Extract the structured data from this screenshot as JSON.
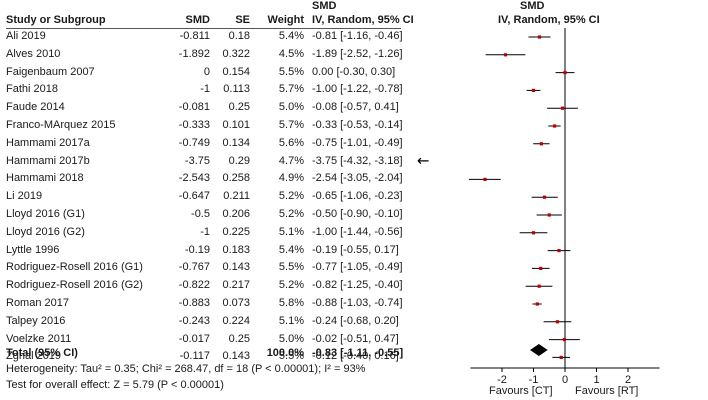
{
  "chart_data": {
    "type": "forest",
    "measure": "SMD",
    "columns": {
      "study": "Study or Subgroup",
      "smd": "SMD",
      "se": "SE",
      "weight": "Weight",
      "ci_group": "SMD",
      "ci_sub": "IV, Random, 95% CI",
      "plot_group": "SMD",
      "plot_sub": "IV, Random, 95% CI"
    },
    "studies": [
      {
        "name": "Ali 2019",
        "smd": "-0.811",
        "se": "0.18",
        "weight": "5.4%",
        "ci": "-0.81 [-1.16, -0.46]",
        "est": -0.81,
        "lo": -1.16,
        "hi": -0.46
      },
      {
        "name": "Alves 2010",
        "smd": "-1.892",
        "se": "0.322",
        "weight": "4.5%",
        "ci": "-1.89 [-2.52, -1.26]",
        "est": -1.89,
        "lo": -2.52,
        "hi": -1.26
      },
      {
        "name": "Faigenbaum 2007",
        "smd": "0",
        "se": "0.154",
        "weight": "5.5%",
        "ci": "0.00 [-0.30, 0.30]",
        "est": 0.0,
        "lo": -0.3,
        "hi": 0.3
      },
      {
        "name": "Fathi 2018",
        "smd": "-1",
        "se": "0.113",
        "weight": "5.7%",
        "ci": "-1.00 [-1.22, -0.78]",
        "est": -1.0,
        "lo": -1.22,
        "hi": -0.78
      },
      {
        "name": "Faude 2014",
        "smd": "-0.081",
        "se": "0.25",
        "weight": "5.0%",
        "ci": "-0.08 [-0.57, 0.41]",
        "est": -0.08,
        "lo": -0.57,
        "hi": 0.41
      },
      {
        "name": "Franco-MArquez 2015",
        "smd": "-0.333",
        "se": "0.101",
        "weight": "5.7%",
        "ci": "-0.33 [-0.53, -0.14]",
        "est": -0.33,
        "lo": -0.53,
        "hi": -0.14
      },
      {
        "name": "Hammami 2017a",
        "smd": "-0.749",
        "se": "0.134",
        "weight": "5.6%",
        "ci": "-0.75 [-1.01, -0.49]",
        "est": -0.75,
        "lo": -1.01,
        "hi": -0.49
      },
      {
        "name": "Hammami 2017b",
        "smd": "-3.75",
        "se": "0.29",
        "weight": "4.7%",
        "ci": "-3.75 [-4.32, -3.18]",
        "est": -3.75,
        "lo": -4.32,
        "hi": -3.18,
        "offscale": true
      },
      {
        "name": "Hammami 2018",
        "smd": "-2.543",
        "se": "0.258",
        "weight": "4.9%",
        "ci": "-2.54 [-3.05, -2.04]",
        "est": -2.54,
        "lo": -3.05,
        "hi": -2.04
      },
      {
        "name": "Li 2019",
        "smd": "-0.647",
        "se": "0.211",
        "weight": "5.2%",
        "ci": "-0.65 [-1.06, -0.23]",
        "est": -0.65,
        "lo": -1.06,
        "hi": -0.23
      },
      {
        "name": "Lloyd 2016 (G1)",
        "smd": "-0.5",
        "se": "0.206",
        "weight": "5.2%",
        "ci": "-0.50 [-0.90, -0.10]",
        "est": -0.5,
        "lo": -0.9,
        "hi": -0.1
      },
      {
        "name": "Lloyd 2016 (G2)",
        "smd": "-1",
        "se": "0.225",
        "weight": "5.1%",
        "ci": "-1.00 [-1.44, -0.56]",
        "est": -1.0,
        "lo": -1.44,
        "hi": -0.56
      },
      {
        "name": "Lyttle 1996",
        "smd": "-0.19",
        "se": "0.183",
        "weight": "5.4%",
        "ci": "-0.19 [-0.55, 0.17]",
        "est": -0.19,
        "lo": -0.55,
        "hi": 0.17
      },
      {
        "name": "Rodriguez-Rosell 2016 (G1)",
        "smd": "-0.767",
        "se": "0.143",
        "weight": "5.5%",
        "ci": "-0.77 [-1.05, -0.49]",
        "est": -0.77,
        "lo": -1.05,
        "hi": -0.49
      },
      {
        "name": "Rodriguez-Rosell 2016 (G2)",
        "smd": "-0.822",
        "se": "0.217",
        "weight": "5.2%",
        "ci": "-0.82 [-1.25, -0.40]",
        "est": -0.82,
        "lo": -1.25,
        "hi": -0.4
      },
      {
        "name": "Roman 2017",
        "smd": "-0.883",
        "se": "0.073",
        "weight": "5.8%",
        "ci": "-0.88 [-1.03, -0.74]",
        "est": -0.88,
        "lo": -1.03,
        "hi": -0.74
      },
      {
        "name": "Talpey 2016",
        "smd": "-0.243",
        "se": "0.224",
        "weight": "5.1%",
        "ci": "-0.24 [-0.68, 0.20]",
        "est": -0.24,
        "lo": -0.68,
        "hi": 0.2
      },
      {
        "name": "Voelzke 2011",
        "smd": "-0.017",
        "se": "0.25",
        "weight": "5.0%",
        "ci": "-0.02 [-0.51, 0.47]",
        "est": -0.02,
        "lo": -0.51,
        "hi": 0.47
      },
      {
        "name": "Zghal 2019",
        "smd": "-0.117",
        "se": "0.143",
        "weight": "5.5%",
        "ci": "-0.12 [-0.40, 0.16]",
        "est": -0.12,
        "lo": -0.4,
        "hi": 0.16
      }
    ],
    "total": {
      "label": "Total (95% CI)",
      "weight": "100.0%",
      "ci": "-0.83 [-1.11, -0.55]",
      "est": -0.83,
      "lo": -1.11,
      "hi": -0.55
    },
    "heterogeneity": "Heterogeneity: Tau² = 0.35; Chi² = 268.47, df = 18 (P < 0.00001); I² = 93%",
    "overall_effect": "Test for overall effect: Z = 5.79 (P < 0.00001)",
    "axis": {
      "xlim": [
        -3,
        3
      ],
      "ticks": [
        -2,
        -1,
        0,
        1,
        2
      ],
      "tick_labels": [
        "-2",
        "-1",
        "0",
        "1",
        "2"
      ]
    },
    "favours_left": "Favours [CT]",
    "favours_right": "Favours [RT]",
    "offscale_arrow": "←",
    "colors": {
      "point": "#c00000",
      "line": "#000000",
      "diamond": "#000000"
    }
  }
}
